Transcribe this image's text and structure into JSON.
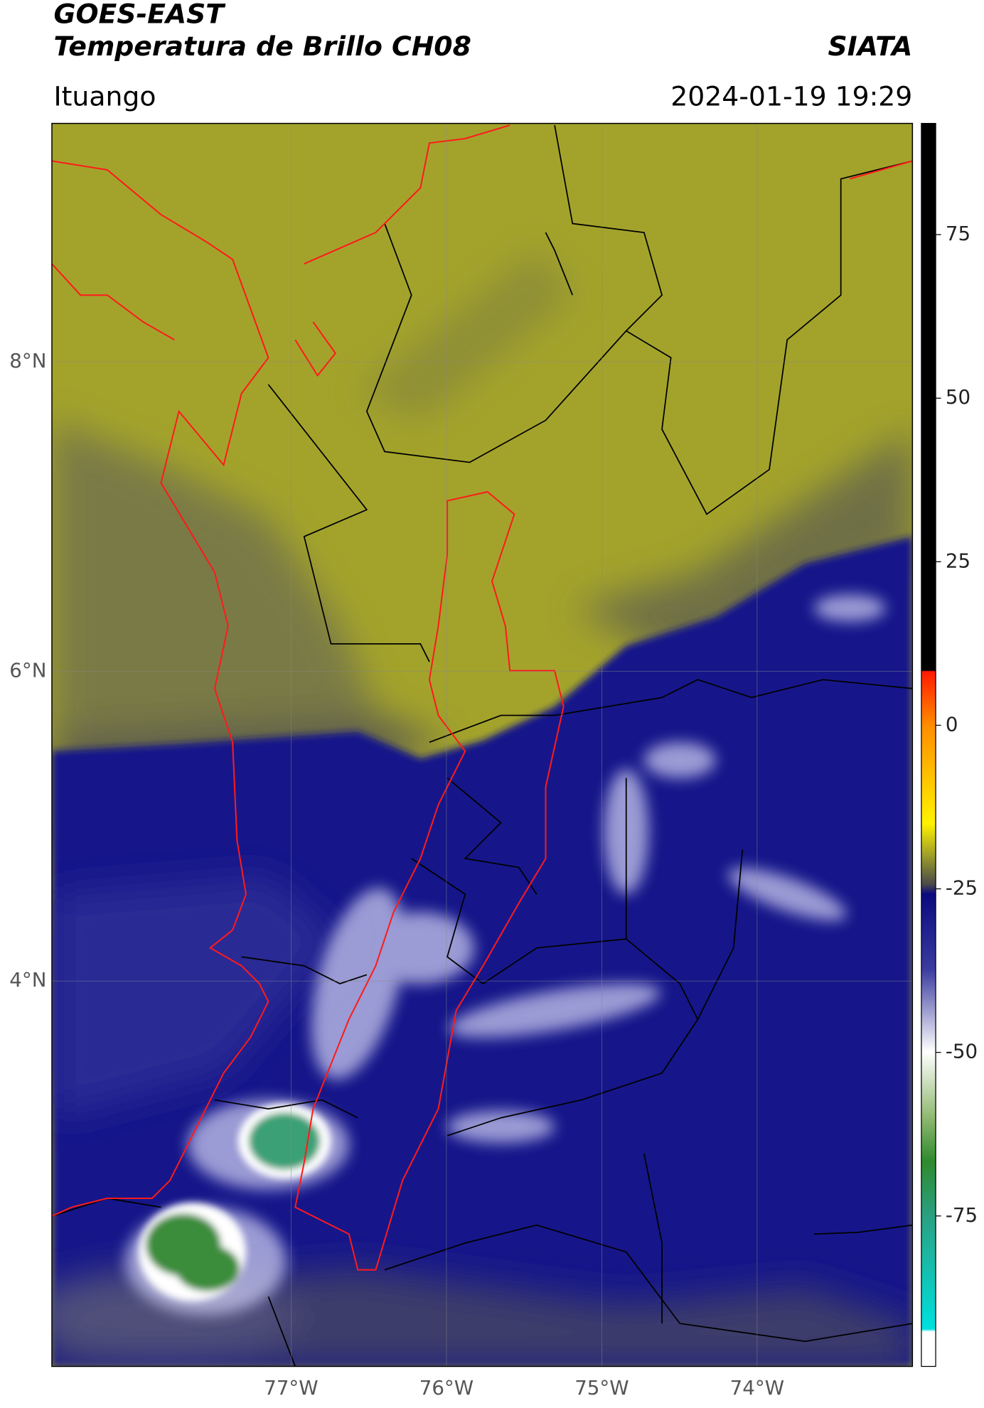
{
  "header": {
    "title": "GOES-EAST",
    "subtitle": "Temperatura de Brillo CH08",
    "brand": "SIATA",
    "location": "Ituango",
    "datetime": "2024-01-19 19:29"
  },
  "map": {
    "lonlim": [
      -78.54,
      -73.0
    ],
    "latlim": [
      1.51,
      9.54
    ],
    "lonticks": [
      {
        "value": -77,
        "label": "77°W"
      },
      {
        "value": -76,
        "label": "76°W"
      },
      {
        "value": -75,
        "label": "75°W"
      },
      {
        "value": -74,
        "label": "74°W"
      }
    ],
    "latticks": [
      {
        "value": 8,
        "label": "8°N"
      },
      {
        "value": 6,
        "label": "6°N"
      },
      {
        "value": 4,
        "label": "4°N"
      }
    ],
    "grid": true
  },
  "colorbar": {
    "lim": [
      -98,
      92
    ],
    "ticks": [
      75,
      50,
      25,
      0,
      -25,
      -50,
      -75
    ]
  }
}
